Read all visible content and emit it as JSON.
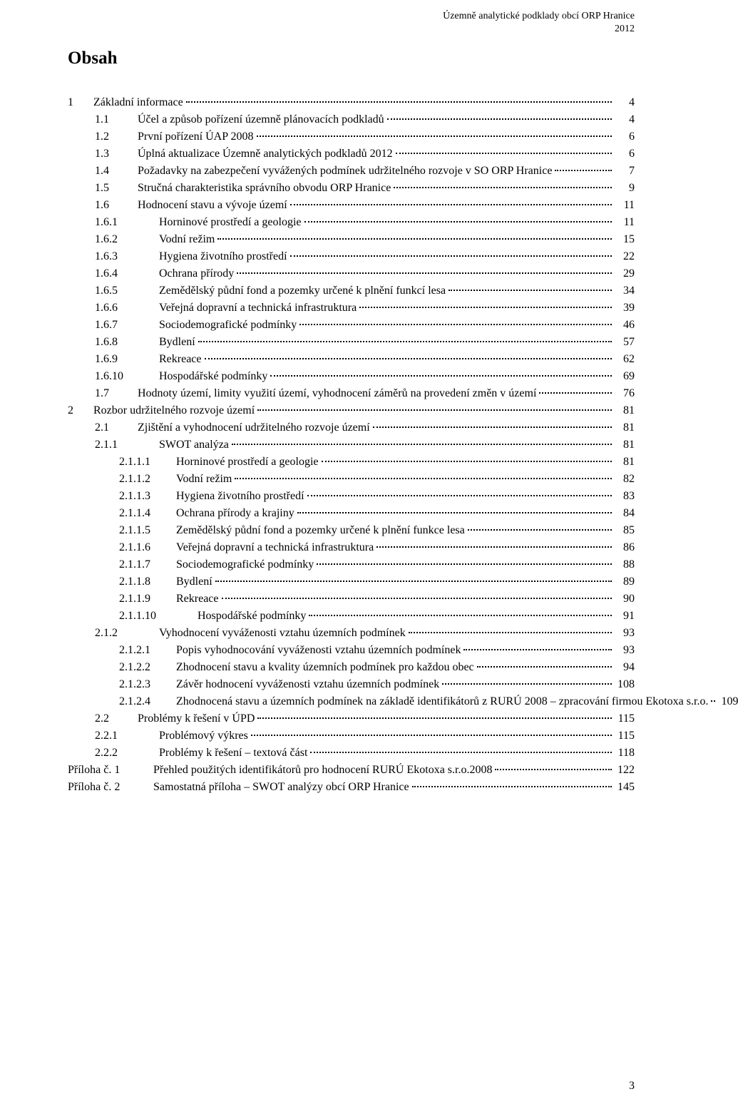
{
  "header": {
    "line1": "Územně analytické podklady obcí ORP Hranice",
    "line2": "2012"
  },
  "title": "Obsah",
  "page_number": "3",
  "toc": [
    {
      "lvl": 0,
      "num": "1",
      "txt": "Základní informace",
      "pg": "4"
    },
    {
      "lvl": 1,
      "num": "1.1",
      "txt": "Účel a způsob pořízení územně plánovacích podkladů",
      "pg": "4"
    },
    {
      "lvl": 1,
      "num": "1.2",
      "txt": "První pořízení ÚAP 2008",
      "pg": "6"
    },
    {
      "lvl": 1,
      "num": "1.3",
      "txt": "Úplná aktualizace Územně analytických podkladů 2012",
      "pg": "6"
    },
    {
      "lvl": 1,
      "num": "1.4",
      "txt": "Požadavky na zabezpečení vyvážených podmínek udržitelného rozvoje v SO ORP Hranice",
      "pg": "7"
    },
    {
      "lvl": 1,
      "num": "1.5",
      "txt": "Stručná charakteristika správního obvodu ORP Hranice",
      "pg": "9"
    },
    {
      "lvl": 1,
      "num": "1.6",
      "txt": "Hodnocení stavu a vývoje území",
      "pg": "11"
    },
    {
      "lvl": 2,
      "num": "1.6.1",
      "txt": "Horninové prostředí a geologie",
      "pg": "11"
    },
    {
      "lvl": 2,
      "num": "1.6.2",
      "txt": "Vodní režim",
      "pg": "15"
    },
    {
      "lvl": 2,
      "num": "1.6.3",
      "txt": "Hygiena životního prostředí",
      "pg": "22"
    },
    {
      "lvl": 2,
      "num": "1.6.4",
      "txt": "Ochrana přírody",
      "pg": "29"
    },
    {
      "lvl": 2,
      "num": "1.6.5",
      "txt": "Zemědělský půdní fond a pozemky určené k plnění funkcí lesa",
      "pg": "34"
    },
    {
      "lvl": 2,
      "num": "1.6.6",
      "txt": "Veřejná dopravní a technická infrastruktura",
      "pg": "39"
    },
    {
      "lvl": 2,
      "num": "1.6.7",
      "txt": "Sociodemografické podmínky",
      "pg": "46"
    },
    {
      "lvl": 2,
      "num": "1.6.8",
      "txt": "Bydlení",
      "pg": "57"
    },
    {
      "lvl": 2,
      "num": "1.6.9",
      "txt": "Rekreace",
      "pg": "62"
    },
    {
      "lvl": 2,
      "num": "1.6.10",
      "txt": "Hospodářské podmínky",
      "pg": "69"
    },
    {
      "lvl": 1,
      "num": "1.7",
      "txt": "Hodnoty území, limity využití území, vyhodnocení záměrů na provedení změn v území",
      "pg": "76"
    },
    {
      "lvl": 0,
      "num": "2",
      "txt": "Rozbor udržitelného rozvoje území",
      "pg": "81"
    },
    {
      "lvl": 1,
      "num": "2.1",
      "txt": "Zjištění a vyhodnocení  udržitelného rozvoje území",
      "pg": "81"
    },
    {
      "lvl": 2,
      "num": "2.1.1",
      "txt": "SWOT analýza",
      "pg": "81"
    },
    {
      "lvl": 3,
      "num": "2.1.1.1",
      "txt": "Horninové prostředí a geologie",
      "pg": "81"
    },
    {
      "lvl": 3,
      "num": "2.1.1.2",
      "txt": "Vodní režim",
      "pg": "82"
    },
    {
      "lvl": 3,
      "num": "2.1.1.3",
      "txt": "Hygiena životního prostředí",
      "pg": "83"
    },
    {
      "lvl": 3,
      "num": "2.1.1.4",
      "txt": "Ochrana přírody a krajiny",
      "pg": "84"
    },
    {
      "lvl": 3,
      "num": "2.1.1.5",
      "txt": "Zemědělský půdní fond a pozemky určené k plnění funkce lesa",
      "pg": "85"
    },
    {
      "lvl": 3,
      "num": "2.1.1.6",
      "txt": "Veřejná dopravní a technická infrastruktura",
      "pg": "86"
    },
    {
      "lvl": 3,
      "num": "2.1.1.7",
      "txt": "Sociodemografické podmínky",
      "pg": "88"
    },
    {
      "lvl": 3,
      "num": "2.1.1.8",
      "txt": "Bydlení",
      "pg": "89"
    },
    {
      "lvl": 3,
      "num": "2.1.1.9",
      "txt": "Rekreace",
      "pg": "90"
    },
    {
      "lvl": "3w",
      "num": "2.1.1.10",
      "txt": "Hospodářské podmínky",
      "pg": "91"
    },
    {
      "lvl": 2,
      "num": "2.1.2",
      "txt": "Vyhodnocení vyváženosti vztahu územních podmínek",
      "pg": "93"
    },
    {
      "lvl": 3,
      "num": "2.1.2.1",
      "txt": "Popis vyhodnocování vyváženosti vztahu územních podmínek",
      "pg": "93"
    },
    {
      "lvl": 3,
      "num": "2.1.2.2",
      "txt": "Zhodnocení stavu a kvality územních podmínek pro každou obec",
      "pg": "94"
    },
    {
      "lvl": 3,
      "num": "2.1.2.3",
      "txt": "Závěr hodnocení vyváženosti vztahu územních podmínek",
      "pg": "108"
    },
    {
      "lvl": 3,
      "num": "2.1.2.4",
      "txt": "Zhodnocená stavu a územních podmínek na základě identifikátorů z RURÚ 2008 – zpracování firmou Ekotoxa s.r.o.",
      "pg": "109",
      "wrap": true
    },
    {
      "lvl": 1,
      "num": "2.2",
      "txt": "Problémy k řešení v ÚPD",
      "pg": "115"
    },
    {
      "lvl": 2,
      "num": "2.2.1",
      "txt": "Problémový výkres",
      "pg": "115"
    },
    {
      "lvl": 2,
      "num": "2.2.2",
      "txt": "Problémy k řešení – textová část",
      "pg": "118"
    },
    {
      "lvl": 0,
      "num": "Příloha č. 1",
      "txt": "Přehled  použitých identifikátorů pro hodnocení RURÚ Ekotoxa s.r.o.2008",
      "pg": "122",
      "numw": 120
    },
    {
      "lvl": 0,
      "num": "Příloha č. 2",
      "txt": "Samostatná příloha – SWOT  analýzy obcí ORP Hranice",
      "pg": "145",
      "numw": 120
    }
  ]
}
